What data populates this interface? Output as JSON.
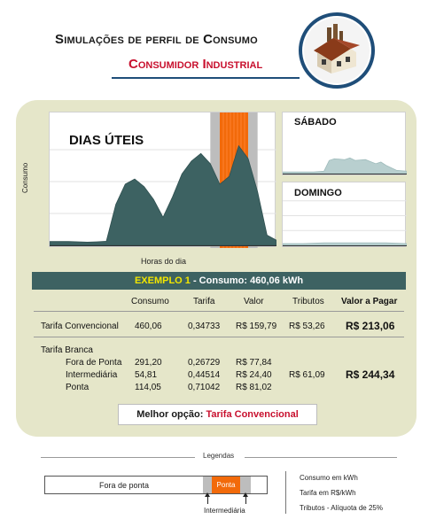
{
  "header": {
    "title": "Simulações de perfil de Consumo",
    "subtitle": "Consumidor Industrial"
  },
  "colors": {
    "accent_red": "#c8102e",
    "bar_teal": "#3d6262",
    "area_fill": "#3d6262",
    "peak_orange": "#f26a0a",
    "intermediate_gray": "#bdbdbd",
    "panel_bg": "#e5e6c9"
  },
  "charts": {
    "main_title": "DIAS ÚTEIS",
    "saturday_title": "SÁBADO",
    "sunday_title": "DOMINGO",
    "ylabel": "Consumo",
    "xlabel": "Horas do dia"
  },
  "chart_data": [
    {
      "type": "area",
      "title": "DIAS ÚTEIS",
      "xlabel": "Horas do dia",
      "ylabel": "Consumo",
      "x": [
        0,
        1,
        2,
        3,
        4,
        5,
        6,
        7,
        8,
        9,
        10,
        11,
        12,
        13,
        14,
        15,
        16,
        17,
        18,
        19,
        20,
        21,
        22,
        23,
        24
      ],
      "values": [
        3,
        3,
        3,
        2.8,
        2.5,
        2.8,
        3.2,
        32,
        48,
        52,
        46,
        36,
        22,
        38,
        56,
        66,
        72,
        64,
        48,
        54,
        78,
        68,
        42,
        8,
        4
      ],
      "ylim": [
        0,
        100
      ],
      "highlights": [
        {
          "label": "Intermediária",
          "x_range": [
            17,
            18
          ]
        },
        {
          "label": "Ponta",
          "x_range": [
            18,
            21
          ]
        },
        {
          "label": "Intermediária",
          "x_range": [
            21,
            22
          ]
        }
      ]
    },
    {
      "type": "area",
      "title": "SÁBADO",
      "x": [
        0,
        2,
        4,
        6,
        8,
        9,
        10,
        12,
        13,
        14,
        16,
        18,
        19,
        20,
        22,
        24
      ],
      "values": [
        2,
        2,
        2,
        2,
        3,
        16,
        18,
        17,
        19,
        16,
        17,
        12,
        14,
        10,
        4,
        3
      ],
      "ylim": [
        0,
        70
      ]
    },
    {
      "type": "area",
      "title": "DOMINGO",
      "x": [
        0,
        4,
        8,
        12,
        16,
        20,
        24
      ],
      "values": [
        2,
        2,
        3,
        3,
        3,
        3,
        2
      ],
      "ylim": [
        0,
        70
      ]
    }
  ],
  "example": {
    "label": "EXEMPLO 1",
    "text": " - Consumo: 460,06 kWh"
  },
  "table": {
    "headers": {
      "consumo": "Consumo",
      "tarifa": "Tarifa",
      "valor": "Valor",
      "tributos": "Tributos",
      "valor_pagar": "Valor a Pagar"
    },
    "convencional": {
      "label": "Tarifa Convencional",
      "consumo": "460,06",
      "tarifa": "0,34733",
      "valor": "R$ 159,79",
      "tributos": "R$ 53,26",
      "total": "R$ 213,06"
    },
    "branca": {
      "label": "Tarifa Branca",
      "rows": [
        {
          "label": "Fora de Ponta",
          "consumo": "291,20",
          "tarifa": "0,26729",
          "valor": "R$ 77,84"
        },
        {
          "label": "Intermediária",
          "consumo": "54,81",
          "tarifa": "0,44514",
          "valor": "R$ 24,40"
        },
        {
          "label": "Ponta",
          "consumo": "114,05",
          "tarifa": "0,71042",
          "valor": "R$ 81,02"
        }
      ],
      "tributos": "R$ 61,09",
      "total": "R$ 244,34"
    }
  },
  "best": {
    "label": "Melhor opção: ",
    "value": "Tarifa Convencional"
  },
  "legend": {
    "title": "Legendas",
    "fora": "Fora de ponta",
    "ponta": "Ponta",
    "inter": "Intermediária",
    "notes": [
      "Consumo em kWh",
      "Tarifa  em R$/kWh",
      "Tributos - Alíquota de 25%"
    ]
  }
}
